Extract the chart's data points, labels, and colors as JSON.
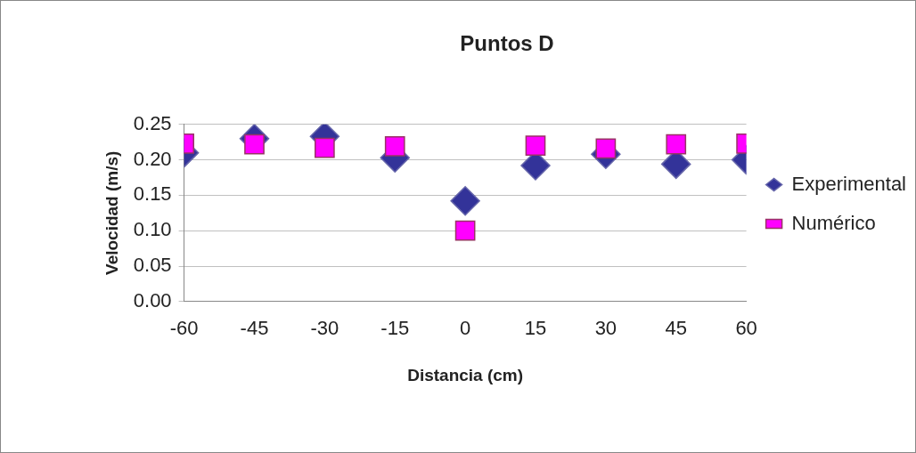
{
  "chart_data": {
    "type": "scatter",
    "title": "Puntos D",
    "xlabel": "Distancia (cm)",
    "ylabel": "Velocidad (m/s)",
    "x": [
      -60,
      -45,
      -30,
      -15,
      0,
      15,
      30,
      45,
      60
    ],
    "series": [
      {
        "name": "Experimental",
        "color": "#333399",
        "marker": "diamond",
        "values": [
          0.21,
          0.23,
          0.233,
          0.203,
          0.142,
          0.192,
          0.208,
          0.194,
          0.2
        ]
      },
      {
        "name": "Numérico",
        "color": "#ff00ff",
        "marker": "square",
        "values": [
          0.223,
          0.222,
          0.217,
          0.219,
          0.1,
          0.22,
          0.216,
          0.222,
          0.223
        ]
      }
    ],
    "xlim": [
      -60,
      60
    ],
    "xticks": [
      -60,
      -45,
      -30,
      -15,
      0,
      15,
      30,
      45,
      60
    ],
    "ylim": [
      0,
      0.25
    ],
    "yticks": [
      {
        "value": 0,
        "label": "0.00"
      },
      {
        "value": 0.05,
        "label": "0.05"
      },
      {
        "value": 0.1,
        "label": "0.10"
      },
      {
        "value": 0.15,
        "label": "0.15"
      },
      {
        "value": 0.2,
        "label": "0.20"
      },
      {
        "value": 0.25,
        "label": "0.25"
      }
    ],
    "grid": "y",
    "legend": "right"
  }
}
